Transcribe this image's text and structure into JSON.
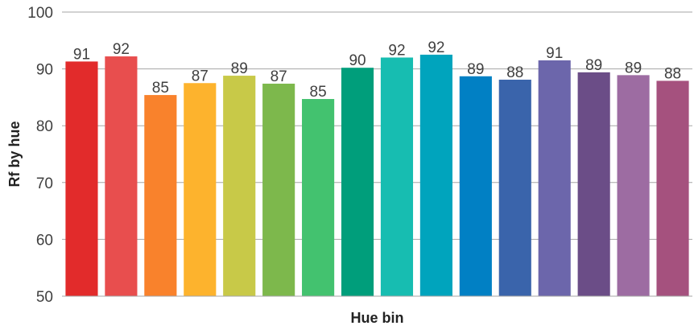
{
  "chart_data": {
    "type": "bar",
    "title": "",
    "xlabel": "Hue bin",
    "ylabel": "Rf  by hue",
    "ylim": [
      50,
      100
    ],
    "yticks": [
      50,
      60,
      70,
      80,
      90,
      100
    ],
    "grid": true,
    "legend": "none",
    "values": [
      91,
      92,
      85,
      87,
      89,
      87,
      85,
      90,
      92,
      92,
      89,
      88,
      91,
      89,
      89,
      88
    ],
    "raw_values": [
      91.3,
      92.2,
      85.4,
      87.5,
      88.8,
      87.4,
      84.7,
      90.2,
      92.0,
      92.5,
      88.7,
      88.1,
      91.5,
      89.4,
      88.9,
      87.9
    ],
    "colors": [
      "#e22b2b",
      "#e84e4e",
      "#f9822c",
      "#fdb32d",
      "#c8c948",
      "#7db84c",
      "#43c26f",
      "#009e7b",
      "#17bdb1",
      "#00a4bd",
      "#0180c4",
      "#3a64ab",
      "#6c66ab",
      "#6b4d87",
      "#9d6ca2",
      "#a5517e"
    ]
  }
}
